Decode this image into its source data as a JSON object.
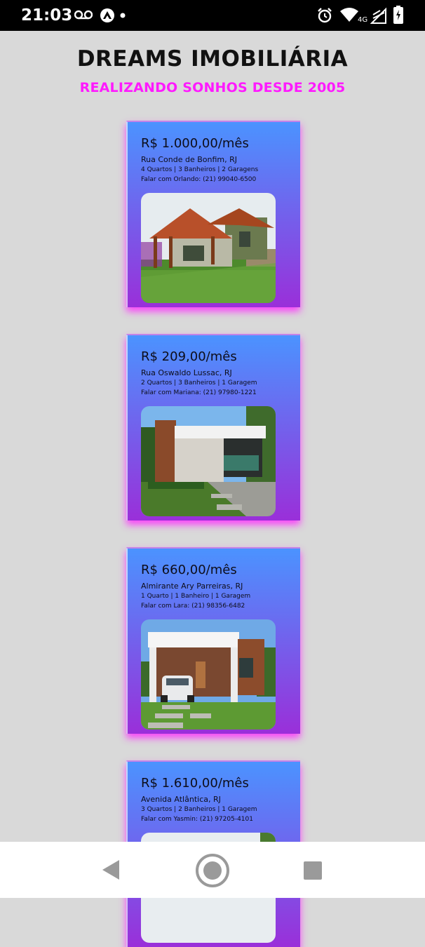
{
  "status_bar": {
    "time": "21:03",
    "network_label": "4G",
    "icons": [
      "voicemail-icon",
      "app-notification-icon",
      "dot-icon",
      "alarm-icon",
      "wifi-icon",
      "signal-icon",
      "battery-icon"
    ]
  },
  "header": {
    "title": "DREAMS IMOBILIÁRIA",
    "subtitle": "REALIZANDO SONHOS DESDE 2005",
    "subtitle_color": "#ff1aff"
  },
  "listings": [
    {
      "price": "R$ 1.000,00/mês",
      "address": "Rua Conde de Bonfim, RJ",
      "rooms": "4 Quartos | 3 Banheiros | 2 Garagens",
      "contact": "Falar com Orlando: (21) 99040-6500",
      "photo": "house-photo-wooden-roof"
    },
    {
      "price": "R$ 209,00/mês",
      "address": "Rua Oswaldo Lussac, RJ",
      "rooms": "2 Quartos | 3 Banheiros | 1 Garagem",
      "contact": "Falar com Mariana: (21) 97980-1221",
      "photo": "house-photo-modern-flat-roof"
    },
    {
      "price": "R$ 660,00/mês",
      "address": "Almirante Ary Parreiras, RJ",
      "rooms": "1 Quarto | 1 Banheiro | 1 Garagem",
      "contact": "Falar com Lara: (21) 98356-6482",
      "photo": "house-photo-with-car"
    },
    {
      "price": "R$ 1.610,00/mês",
      "address": "Avenida Atlântica, RJ",
      "rooms": "3 Quartos | 2 Banheiros | 1 Garagem",
      "contact": "Falar com Yasmin: (21) 97205-4101",
      "photo": "house-photo-partial"
    }
  ],
  "colors": {
    "background": "#d9d9d9",
    "card_gradient_top": "#4b93ff",
    "card_gradient_bottom": "#9a2fd9",
    "card_glow": "#ff28ff"
  },
  "nav_bar": {
    "buttons": [
      "back-icon",
      "home-icon",
      "recents-icon"
    ]
  }
}
